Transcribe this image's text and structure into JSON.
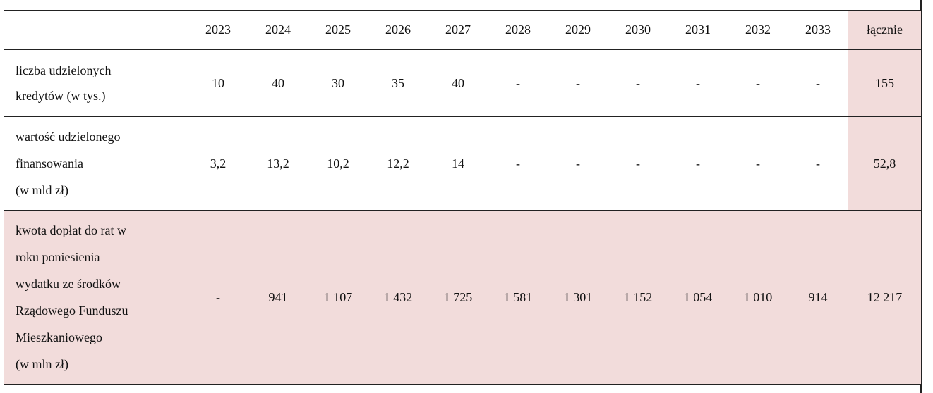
{
  "table": {
    "header": [
      "2023",
      "2024",
      "2025",
      "2026",
      "2027",
      "2028",
      "2029",
      "2030",
      "2031",
      "2032",
      "2033",
      "łącznie"
    ],
    "rows": [
      {
        "label": [
          "liczba udzielonych",
          "kredytów (w tys.)"
        ],
        "cells": [
          "10",
          "40",
          "30",
          "35",
          "40",
          "-",
          "-",
          "-",
          "-",
          "-",
          "-",
          "155"
        ]
      },
      {
        "label": [
          "wartość udzielonego",
          "finansowania",
          "(w mld zł)"
        ],
        "cells": [
          "3,2",
          "13,2",
          "10,2",
          "12,2",
          "14",
          "-",
          "-",
          "-",
          "-",
          "-",
          "-",
          "52,8"
        ]
      },
      {
        "label": [
          "kwota dopłat do rat w",
          "roku poniesienia",
          "wydatku ze środków",
          "Rządowego Funduszu",
          "Mieszkaniowego",
          "(w mln zł)"
        ],
        "cells": [
          "-",
          "941",
          "1 107",
          "1 432",
          "1 725",
          "1 581",
          "1 301",
          "1 152",
          "1 054",
          "1 010",
          "914",
          "12 217"
        ]
      }
    ]
  }
}
